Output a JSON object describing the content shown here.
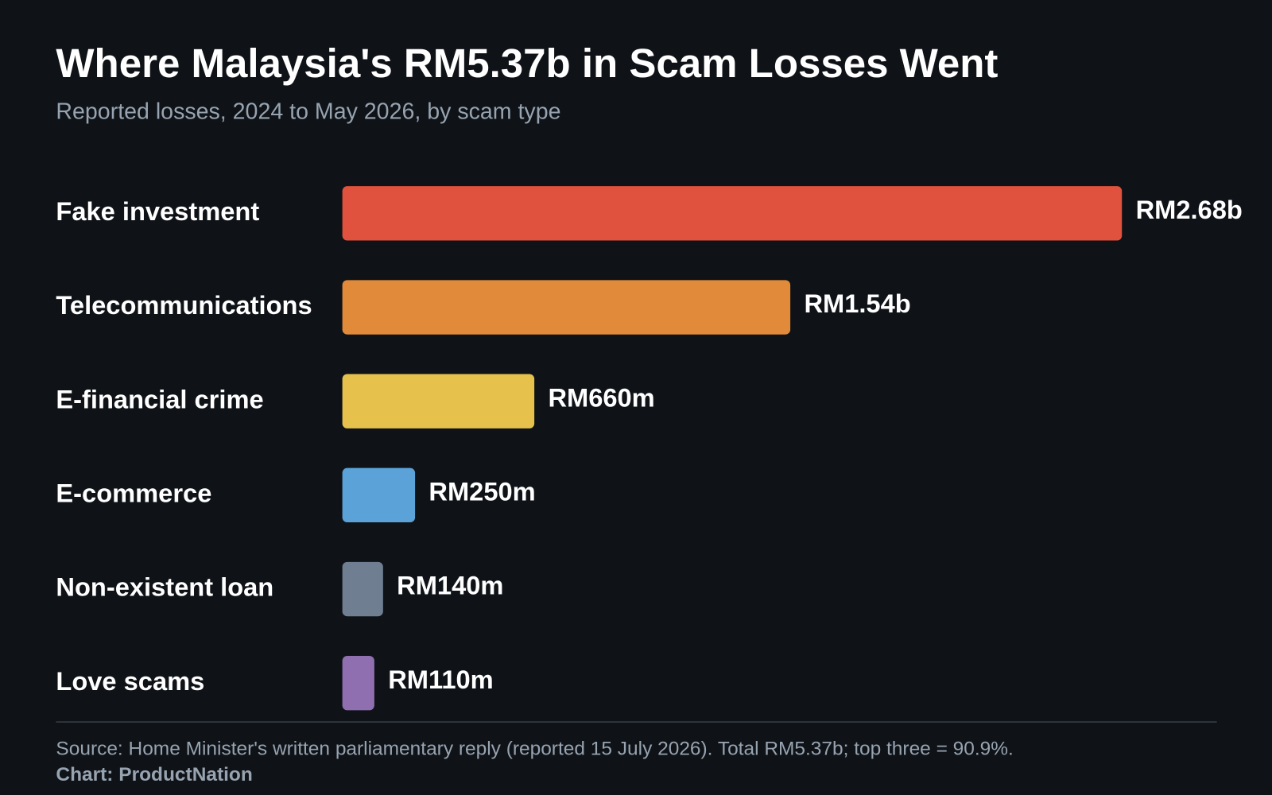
{
  "chart_data": {
    "type": "bar",
    "orientation": "horizontal",
    "title": "Where Malaysia's RM5.37b in Scam Losses Went",
    "subtitle": "Reported losses, 2024 to May 2026, by scam type",
    "categories": [
      "Fake investment",
      "Telecommunications",
      "E-financial crime",
      "E-commerce",
      "Non-existent loan",
      "Love scams"
    ],
    "values": [
      2680,
      1540,
      660,
      250,
      140,
      110
    ],
    "value_labels": [
      "RM2.68b",
      "RM1.54b",
      "RM660m",
      "RM250m",
      "RM140m",
      "RM110m"
    ],
    "colors": [
      "#e0523d",
      "#e08a3a",
      "#e6c24d",
      "#5aa2d8",
      "#6f7f91",
      "#8f6fb0"
    ],
    "source": "Source: Home Minister's written parliamentary reply (reported 15 July 2026). Total RM5.37b; top three = 90.9%.",
    "credit": "Chart: ProductNation"
  }
}
